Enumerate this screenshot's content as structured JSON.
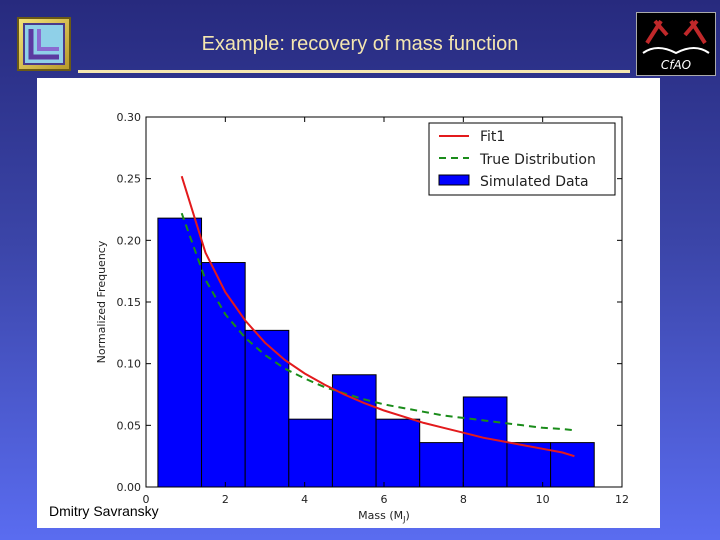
{
  "slide": {
    "title": "Example: recovery of mass function",
    "author": "Dmitry Savransky",
    "left_logo_icon": "lab-logo-icon",
    "right_logo_icon": "cfao-logo-icon",
    "right_logo_text": "CfAO"
  },
  "colors": {
    "background_top": "#272a7e",
    "background_bottom": "#5a6cf0",
    "title_text": "#f4e6b0",
    "bars": "#0000ff",
    "fit": "#e31a1c",
    "true_dist": "#1a8c1a"
  },
  "chart_data": {
    "type": "bar",
    "title": "",
    "xlabel": "Mass (M",
    "xlabel_sub": "J",
    "xlabel_end": ")",
    "ylabel": "Normalized Frequency",
    "xlim": [
      0,
      12
    ],
    "ylim": [
      0.0,
      0.3
    ],
    "xticks": [
      "0",
      "2",
      "4",
      "6",
      "8",
      "10",
      "12"
    ],
    "yticks": [
      "0.00",
      "0.05",
      "0.10",
      "0.15",
      "0.20",
      "0.25",
      "0.30"
    ],
    "grid": false,
    "legend_position": "top-right",
    "bins": [
      {
        "x0": 0.3,
        "x1": 1.4,
        "value": 0.218
      },
      {
        "x0": 1.4,
        "x1": 2.5,
        "value": 0.182
      },
      {
        "x0": 2.5,
        "x1": 3.6,
        "value": 0.127
      },
      {
        "x0": 3.6,
        "x1": 4.7,
        "value": 0.055
      },
      {
        "x0": 4.7,
        "x1": 5.8,
        "value": 0.091
      },
      {
        "x0": 5.8,
        "x1": 6.9,
        "value": 0.055
      },
      {
        "x0": 6.9,
        "x1": 8.0,
        "value": 0.036
      },
      {
        "x0": 8.0,
        "x1": 9.1,
        "value": 0.073
      },
      {
        "x0": 9.1,
        "x1": 10.2,
        "value": 0.036
      },
      {
        "x0": 10.2,
        "x1": 11.3,
        "value": 0.036
      }
    ],
    "series": [
      {
        "name": "Fit1",
        "style": "solid",
        "x": [
          0.9,
          1.5,
          2.0,
          2.5,
          3.0,
          3.5,
          4.0,
          4.5,
          5.0,
          5.5,
          6.0,
          6.5,
          7.0,
          7.5,
          8.0,
          8.5,
          9.0,
          9.5,
          10.0,
          10.5,
          10.8
        ],
        "y": [
          0.252,
          0.19,
          0.158,
          0.135,
          0.117,
          0.103,
          0.092,
          0.083,
          0.075,
          0.068,
          0.062,
          0.057,
          0.052,
          0.048,
          0.044,
          0.04,
          0.037,
          0.034,
          0.031,
          0.028,
          0.025
        ]
      },
      {
        "name": "True Distribution",
        "style": "dashed",
        "x": [
          0.9,
          1.5,
          2.0,
          2.5,
          3.0,
          3.5,
          4.0,
          4.5,
          5.0,
          5.5,
          6.0,
          6.5,
          7.0,
          7.5,
          8.0,
          8.5,
          9.0,
          9.5,
          10.0,
          10.5,
          10.8
        ],
        "y": [
          0.222,
          0.168,
          0.14,
          0.121,
          0.107,
          0.096,
          0.088,
          0.081,
          0.076,
          0.071,
          0.067,
          0.064,
          0.061,
          0.058,
          0.056,
          0.054,
          0.052,
          0.05,
          0.048,
          0.047,
          0.046
        ]
      },
      {
        "name": "Simulated Data",
        "style": "bar"
      }
    ]
  }
}
